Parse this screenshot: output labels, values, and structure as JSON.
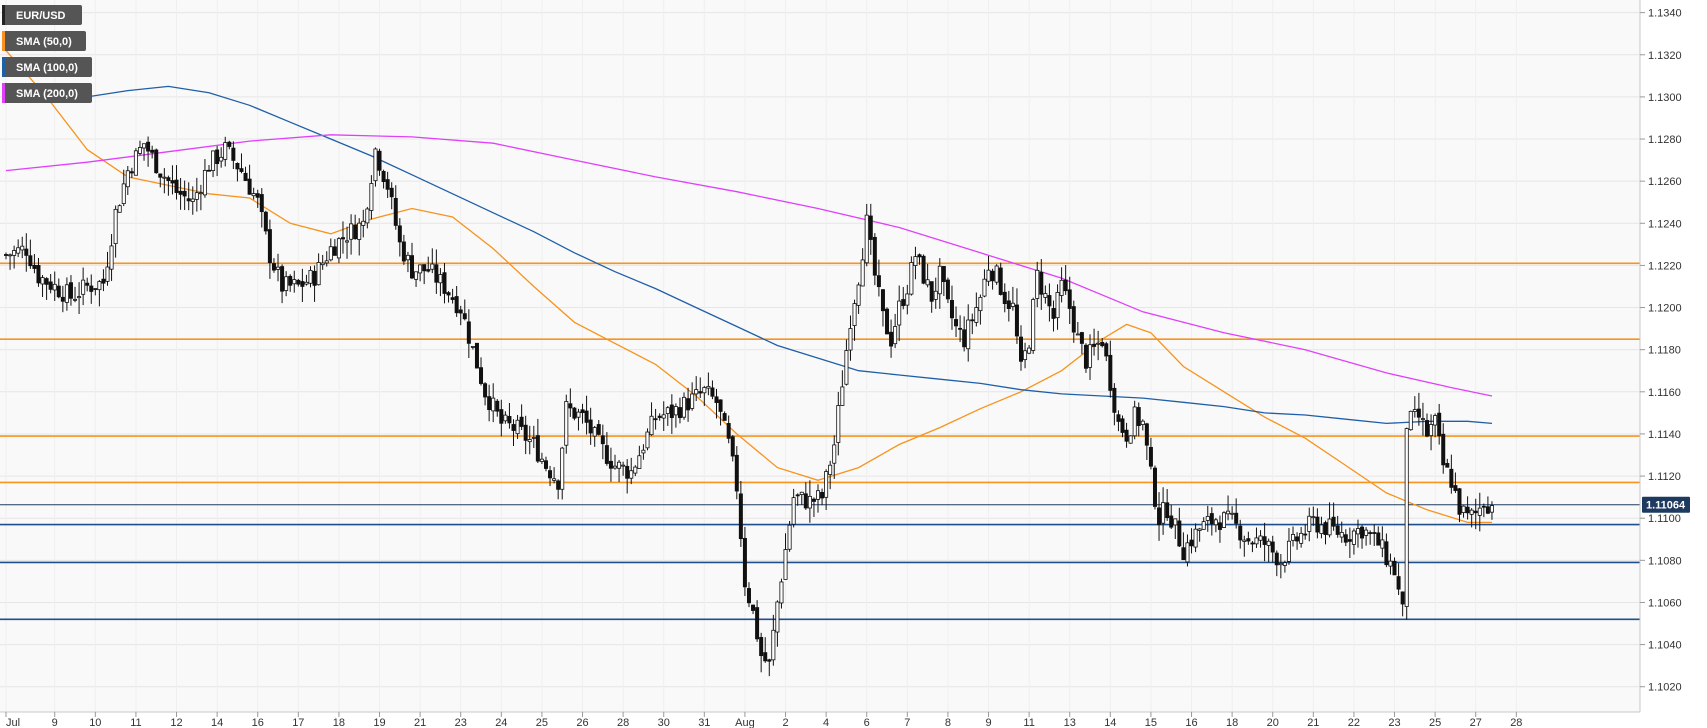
{
  "chart_data": {
    "type": "candlestick",
    "symbol": "EUR/USD",
    "current_price": "1.11064",
    "y_range": [
      1.1008,
      1.1346
    ],
    "y_ticks": [
      "1.1340",
      "1.1320",
      "1.1300",
      "1.1280",
      "1.1260",
      "1.1240",
      "1.1220",
      "1.1200",
      "1.1180",
      "1.1160",
      "1.1140",
      "1.1120",
      "1.1100",
      "1.1080",
      "1.1060",
      "1.1040",
      "1.1020"
    ],
    "x_ticks": [
      {
        "label": "Jul",
        "i": 0
      },
      {
        "label": "9",
        "i": 12
      },
      {
        "label": "10",
        "i": 22
      },
      {
        "label": "11",
        "i": 32
      },
      {
        "label": "12",
        "i": 42
      },
      {
        "label": "14",
        "i": 52
      },
      {
        "label": "16",
        "i": 62
      },
      {
        "label": "17",
        "i": 72
      },
      {
        "label": "18",
        "i": 82
      },
      {
        "label": "19",
        "i": 92
      },
      {
        "label": "21",
        "i": 102
      },
      {
        "label": "23",
        "i": 112
      },
      {
        "label": "24",
        "i": 122
      },
      {
        "label": "25",
        "i": 132
      },
      {
        "label": "26",
        "i": 142
      },
      {
        "label": "28",
        "i": 152
      },
      {
        "label": "30",
        "i": 162
      },
      {
        "label": "31",
        "i": 172
      },
      {
        "label": "Aug",
        "i": 182
      },
      {
        "label": "2",
        "i": 192
      },
      {
        "label": "4",
        "i": 202
      },
      {
        "label": "6",
        "i": 212
      },
      {
        "label": "7",
        "i": 222
      },
      {
        "label": "8",
        "i": 232
      },
      {
        "label": "9",
        "i": 242
      },
      {
        "label": "11",
        "i": 252
      },
      {
        "label": "13",
        "i": 262
      },
      {
        "label": "14",
        "i": 272
      },
      {
        "label": "15",
        "i": 282
      },
      {
        "label": "16",
        "i": 292
      },
      {
        "label": "18",
        "i": 302
      },
      {
        "label": "20",
        "i": 312
      },
      {
        "label": "21",
        "i": 322
      },
      {
        "label": "22",
        "i": 332
      },
      {
        "label": "23",
        "i": 342
      },
      {
        "label": "25",
        "i": 352
      },
      {
        "label": "27",
        "i": 362
      },
      {
        "label": "28",
        "i": 372
      }
    ],
    "legend": [
      {
        "label": "EUR/USD",
        "color": "#222222"
      },
      {
        "label": "SMA (50,0)",
        "color": "#f7931e"
      },
      {
        "label": "SMA (100,0)",
        "color": "#1f5fa8"
      },
      {
        "label": "SMA (200,0)",
        "color": "#e040fb"
      }
    ],
    "horizontal_levels": [
      {
        "value": 1.1221,
        "color": "#f7931e"
      },
      {
        "value": 1.1185,
        "color": "#f7931e"
      },
      {
        "value": 1.1139,
        "color": "#f7931e"
      },
      {
        "value": 1.1117,
        "color": "#f7931e"
      },
      {
        "value": 1.1097,
        "color": "#1f4e8c"
      },
      {
        "value": 1.1079,
        "color": "#1f4e8c"
      },
      {
        "value": 1.1052,
        "color": "#1f4e8c"
      }
    ],
    "current_line": {
      "value": 1.11064,
      "color": "#1f3a5f"
    },
    "close_anchors": [
      [
        0,
        1.1225
      ],
      [
        5,
        1.1228
      ],
      [
        8,
        1.1215
      ],
      [
        12,
        1.121
      ],
      [
        16,
        1.1205
      ],
      [
        20,
        1.121
      ],
      [
        24,
        1.1212
      ],
      [
        27,
        1.1245
      ],
      [
        30,
        1.1265
      ],
      [
        34,
        1.1278
      ],
      [
        38,
        1.1265
      ],
      [
        42,
        1.1255
      ],
      [
        46,
        1.125
      ],
      [
        50,
        1.1268
      ],
      [
        54,
        1.1275
      ],
      [
        58,
        1.1265
      ],
      [
        62,
        1.125
      ],
      [
        65,
        1.1225
      ],
      [
        68,
        1.121
      ],
      [
        72,
        1.121
      ],
      [
        76,
        1.1215
      ],
      [
        80,
        1.1228
      ],
      [
        84,
        1.1235
      ],
      [
        88,
        1.124
      ],
      [
        91,
        1.1275
      ],
      [
        94,
        1.1258
      ],
      [
        97,
        1.123
      ],
      [
        100,
        1.1218
      ],
      [
        104,
        1.1218
      ],
      [
        108,
        1.121
      ],
      [
        112,
        1.12
      ],
      [
        115,
        1.118
      ],
      [
        118,
        1.116
      ],
      [
        122,
        1.1145
      ],
      [
        126,
        1.1142
      ],
      [
        130,
        1.1135
      ],
      [
        133,
        1.1125
      ],
      [
        136,
        1.1118
      ],
      [
        138,
        1.1152
      ],
      [
        142,
        1.1148
      ],
      [
        146,
        1.1135
      ],
      [
        150,
        1.1125
      ],
      [
        154,
        1.1122
      ],
      [
        157,
        1.1135
      ],
      [
        160,
        1.1148
      ],
      [
        164,
        1.115
      ],
      [
        168,
        1.1155
      ],
      [
        172,
        1.116
      ],
      [
        175,
        1.1155
      ],
      [
        178,
        1.1135
      ],
      [
        180,
        1.1115
      ],
      [
        182,
        1.107
      ],
      [
        184,
        1.1055
      ],
      [
        186,
        1.1035
      ],
      [
        188,
        1.103
      ],
      [
        190,
        1.106
      ],
      [
        192,
        1.1085
      ],
      [
        194,
        1.111
      ],
      [
        198,
        1.1108
      ],
      [
        201,
        1.111
      ],
      [
        204,
        1.1135
      ],
      [
        206,
        1.1165
      ],
      [
        208,
        1.1195
      ],
      [
        210,
        1.1215
      ],
      [
        212,
        1.124
      ],
      [
        214,
        1.1215
      ],
      [
        216,
        1.1195
      ],
      [
        218,
        1.1185
      ],
      [
        220,
        1.12
      ],
      [
        222,
        1.121
      ],
      [
        224,
        1.1225
      ],
      [
        226,
        1.1215
      ],
      [
        228,
        1.1205
      ],
      [
        230,
        1.1215
      ],
      [
        232,
        1.12
      ],
      [
        234,
        1.119
      ],
      [
        236,
        1.1185
      ],
      [
        238,
        1.1195
      ],
      [
        240,
        1.1205
      ],
      [
        242,
        1.122
      ],
      [
        244,
        1.1215
      ],
      [
        246,
        1.1205
      ],
      [
        248,
        1.12
      ],
      [
        250,
        1.117
      ],
      [
        252,
        1.1185
      ],
      [
        254,
        1.1215
      ],
      [
        256,
        1.1205
      ],
      [
        258,
        1.1195
      ],
      [
        260,
        1.121
      ],
      [
        262,
        1.12
      ],
      [
        264,
        1.1185
      ],
      [
        266,
        1.1175
      ],
      [
        268,
        1.118
      ],
      [
        270,
        1.1185
      ],
      [
        272,
        1.1165
      ],
      [
        274,
        1.1145
      ],
      [
        276,
        1.114
      ],
      [
        278,
        1.1148
      ],
      [
        280,
        1.1145
      ],
      [
        282,
        1.112
      ],
      [
        284,
        1.11
      ],
      [
        286,
        1.1105
      ],
      [
        288,
        1.1095
      ],
      [
        290,
        1.1085
      ],
      [
        294,
        1.1095
      ],
      [
        298,
        1.11
      ],
      [
        302,
        1.1098
      ],
      [
        306,
        1.109
      ],
      [
        310,
        1.1088
      ],
      [
        314,
        1.108
      ],
      [
        318,
        1.109
      ],
      [
        322,
        1.1098
      ],
      [
        326,
        1.1095
      ],
      [
        330,
        1.1092
      ],
      [
        334,
        1.1095
      ],
      [
        338,
        1.1088
      ],
      [
        342,
        1.1075
      ],
      [
        344,
        1.1055
      ],
      [
        345,
        1.1145
      ],
      [
        348,
        1.1148
      ],
      [
        350,
        1.114
      ],
      [
        352,
        1.1145
      ],
      [
        354,
        1.1125
      ],
      [
        356,
        1.1118
      ],
      [
        358,
        1.1105
      ],
      [
        360,
        1.11
      ],
      [
        362,
        1.1102
      ],
      [
        364,
        1.1108
      ],
      [
        366,
        1.1106
      ]
    ],
    "sma50": [
      [
        0,
        1.1322
      ],
      [
        10,
        1.13
      ],
      [
        20,
        1.1275
      ],
      [
        30,
        1.1262
      ],
      [
        40,
        1.1258
      ],
      [
        50,
        1.1254
      ],
      [
        60,
        1.1252
      ],
      [
        70,
        1.124
      ],
      [
        80,
        1.1235
      ],
      [
        90,
        1.1242
      ],
      [
        100,
        1.1247
      ],
      [
        110,
        1.1243
      ],
      [
        120,
        1.1228
      ],
      [
        130,
        1.121
      ],
      [
        140,
        1.1193
      ],
      [
        150,
        1.1183
      ],
      [
        160,
        1.1173
      ],
      [
        170,
        1.1158
      ],
      [
        180,
        1.114
      ],
      [
        190,
        1.1124
      ],
      [
        200,
        1.1118
      ],
      [
        210,
        1.1124
      ],
      [
        220,
        1.1135
      ],
      [
        230,
        1.1143
      ],
      [
        240,
        1.1152
      ],
      [
        250,
        1.116
      ],
      [
        260,
        1.117
      ],
      [
        270,
        1.1185
      ],
      [
        276,
        1.1192
      ],
      [
        282,
        1.1188
      ],
      [
        290,
        1.1172
      ],
      [
        300,
        1.116
      ],
      [
        310,
        1.1148
      ],
      [
        320,
        1.1138
      ],
      [
        330,
        1.1125
      ],
      [
        340,
        1.1112
      ],
      [
        350,
        1.1104
      ],
      [
        360,
        1.1098
      ],
      [
        366,
        1.1098
      ]
    ],
    "sma100": [
      [
        0,
        1.1301
      ],
      [
        10,
        1.1301
      ],
      [
        20,
        1.13
      ],
      [
        30,
        1.1303
      ],
      [
        40,
        1.1305
      ],
      [
        50,
        1.1302
      ],
      [
        60,
        1.1296
      ],
      [
        70,
        1.1288
      ],
      [
        80,
        1.128
      ],
      [
        90,
        1.1272
      ],
      [
        100,
        1.1263
      ],
      [
        110,
        1.1254
      ],
      [
        120,
        1.1245
      ],
      [
        130,
        1.1236
      ],
      [
        140,
        1.1226
      ],
      [
        150,
        1.1217
      ],
      [
        160,
        1.1209
      ],
      [
        170,
        1.12
      ],
      [
        180,
        1.1191
      ],
      [
        190,
        1.1182
      ],
      [
        200,
        1.1176
      ],
      [
        210,
        1.117
      ],
      [
        220,
        1.1168
      ],
      [
        230,
        1.1166
      ],
      [
        240,
        1.1164
      ],
      [
        250,
        1.1161
      ],
      [
        260,
        1.1159
      ],
      [
        270,
        1.1158
      ],
      [
        280,
        1.1157
      ],
      [
        290,
        1.1155
      ],
      [
        300,
        1.1153
      ],
      [
        310,
        1.115
      ],
      [
        320,
        1.1149
      ],
      [
        330,
        1.1147
      ],
      [
        340,
        1.1145
      ],
      [
        350,
        1.1146
      ],
      [
        360,
        1.1146
      ],
      [
        366,
        1.1145
      ]
    ],
    "sma200": [
      [
        0,
        1.1265
      ],
      [
        20,
        1.1269
      ],
      [
        40,
        1.1274
      ],
      [
        60,
        1.1279
      ],
      [
        80,
        1.1282
      ],
      [
        100,
        1.1281
      ],
      [
        120,
        1.1278
      ],
      [
        140,
        1.127
      ],
      [
        160,
        1.1262
      ],
      [
        180,
        1.1255
      ],
      [
        200,
        1.1247
      ],
      [
        220,
        1.1238
      ],
      [
        240,
        1.1226
      ],
      [
        260,
        1.1214
      ],
      [
        280,
        1.1198
      ],
      [
        300,
        1.1188
      ],
      [
        320,
        1.118
      ],
      [
        340,
        1.1169
      ],
      [
        356,
        1.1162
      ],
      [
        366,
        1.1158
      ]
    ]
  }
}
